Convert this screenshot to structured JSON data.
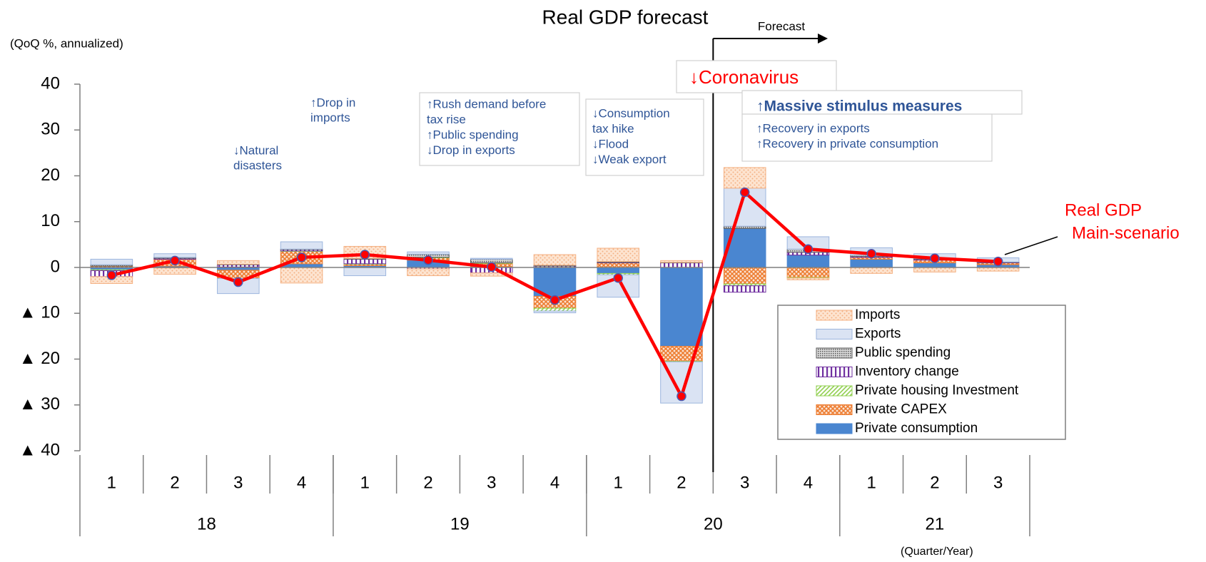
{
  "chart_data": {
    "type": "stacked-bar-line",
    "title": "Real GDP forecast",
    "y_unit": "(QoQ %, annualized)",
    "x_unit": "(Quarter/Year)",
    "categories": [
      "1",
      "2",
      "3",
      "4",
      "1",
      "2",
      "3",
      "4",
      "1",
      "2",
      "3",
      "4",
      "1",
      "2",
      "3"
    ],
    "years": [
      {
        "label": "18",
        "span": 4
      },
      {
        "label": "19",
        "span": 4
      },
      {
        "label": "20",
        "span": 4
      },
      {
        "label": "21",
        "span": 3
      }
    ],
    "ylim": [
      -40,
      40
    ],
    "yticks": [
      40,
      30,
      20,
      10,
      0,
      {
        "value": -10,
        "label": "▲ 10"
      },
      {
        "value": -20,
        "label": "▲ 20"
      },
      {
        "value": -30,
        "label": "▲ 30"
      },
      {
        "value": -40,
        "label": "▲ 40"
      }
    ],
    "forecast_label": "Forecast",
    "series": [
      {
        "name": "Private consumption",
        "color": "#4a86d0",
        "pattern": "solid",
        "values": [
          -0.5,
          0.3,
          -0.6,
          0.8,
          0.4,
          1.6,
          0.2,
          -6.3,
          -1.3,
          -17.2,
          8.5,
          2.7,
          1.8,
          1.0,
          0.6
        ]
      },
      {
        "name": "Private CAPEX",
        "color": "#ed7d31",
        "pattern": "cross",
        "values": [
          0.3,
          1.5,
          -1.8,
          2.7,
          0.3,
          0.5,
          0.7,
          -2.6,
          1.0,
          -3.3,
          -3.6,
          -2.2,
          0.4,
          0.6,
          0.4
        ]
      },
      {
        "name": "Private housing Investment",
        "color": "#92d050",
        "pattern": "diag",
        "values": [
          -0.2,
          -0.1,
          0.1,
          0.1,
          0.1,
          0.1,
          0.1,
          -0.6,
          -0.3,
          -0.1,
          -0.4,
          -0.1,
          0.0,
          0.0,
          0.0
        ]
      },
      {
        "name": "Inventory change",
        "color": "#7030a0",
        "pattern": "vstripes",
        "values": [
          -1.3,
          0.2,
          0.5,
          0.3,
          1.0,
          -0.3,
          -1.2,
          0.3,
          0.1,
          1.0,
          -1.4,
          0.6,
          0.2,
          0.2,
          0.1
        ]
      },
      {
        "name": "Public spending",
        "color": "#595959",
        "pattern": "grid",
        "values": [
          0.3,
          0.2,
          0.1,
          0.1,
          0.2,
          0.7,
          0.8,
          0.2,
          0.2,
          0.1,
          0.5,
          0.7,
          0.3,
          0.2,
          0.1
        ]
      },
      {
        "name": "Exports",
        "color": "#9db6de",
        "pattern": "solid-light",
        "values": [
          1.2,
          0.8,
          -3.3,
          1.6,
          -1.8,
          0.5,
          0.2,
          -0.4,
          -4.9,
          -9.0,
          8.3,
          2.7,
          1.6,
          1.0,
          0.9
        ]
      },
      {
        "name": "Imports",
        "color": "#f4b183",
        "pattern": "dots",
        "values": [
          -1.5,
          -1.4,
          0.8,
          -3.4,
          2.6,
          -1.5,
          -0.7,
          2.3,
          2.9,
          0.4,
          4.5,
          -0.4,
          -1.3,
          -1.0,
          -0.8
        ]
      }
    ],
    "line": {
      "name": "Real GDP",
      "color": "#ff0000",
      "marker_edge": "#4a5ab0",
      "values": [
        -1.7,
        1.5,
        -3.2,
        2.2,
        2.8,
        1.6,
        0.1,
        -7.1,
        -2.3,
        -28.1,
        16.4,
        4.0,
        3.0,
        2.0,
        1.3
      ]
    },
    "line_label": [
      "Real GDP",
      "Main-scenario"
    ],
    "annotations": [
      {
        "lines": [
          "↓Natural",
          "disasters"
        ]
      },
      {
        "lines": [
          "↑Drop in",
          "imports"
        ]
      },
      {
        "lines": [
          "↑Rush demand before",
          "tax rise",
          "↑Public spending",
          "↓Drop in exports"
        ]
      },
      {
        "lines": [
          "↓Consumption",
          "tax hike",
          "↓Flood",
          "↓Weak export"
        ]
      },
      {
        "lines": [
          "↓Coronavirus"
        ]
      },
      {
        "lines": [
          "↑Massive stimulus measures"
        ]
      },
      {
        "lines": [
          "↑Recovery in exports",
          "↑Recovery in private consumption"
        ]
      }
    ]
  }
}
